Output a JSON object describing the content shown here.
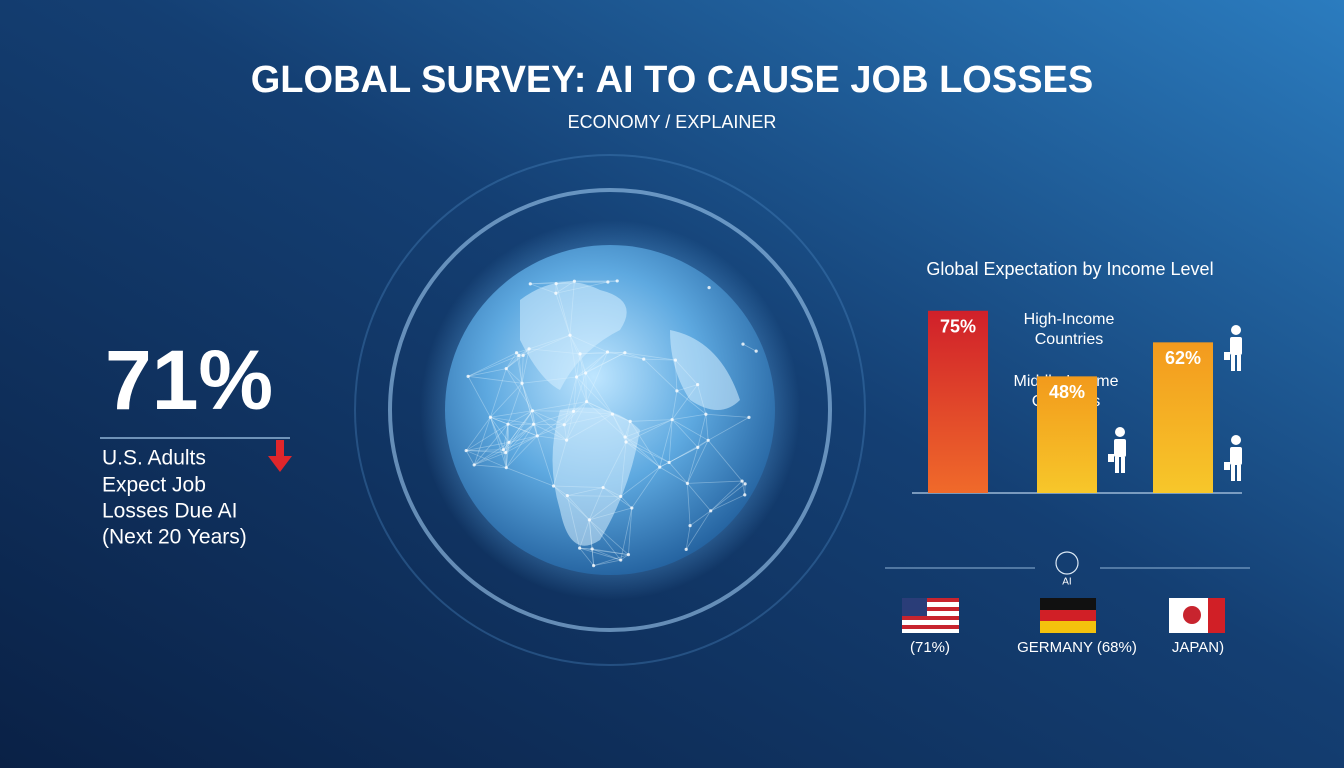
{
  "header": {
    "title": "GLOBAL SURVEY: AI TO CAUSE JOB LOSSES",
    "subtitle": "ECONOMY / EXPLAINER"
  },
  "headline": {
    "stat": "71%",
    "lines": [
      "U.S. Adults",
      "Expect Job",
      "Losses Due AI",
      "(Next 20 Years)"
    ]
  },
  "chart_data": {
    "type": "bar",
    "title": "Global Expectation by Income Level",
    "categories": [
      null,
      null,
      null
    ],
    "values": [
      75,
      48,
      62
    ],
    "value_labels": [
      "75%",
      "48%",
      "62%"
    ],
    "colors": [
      "#d0202a",
      "#f29a1c",
      "#f39a1e"
    ],
    "ylim": [
      0,
      100
    ],
    "annotations": [
      "High-Income Countries",
      "Middle-Income Countries"
    ]
  },
  "countries": {
    "icon_label": "AI",
    "items": [
      "(71%)",
      "GERMANY (68%)",
      "JAPAN)"
    ]
  }
}
